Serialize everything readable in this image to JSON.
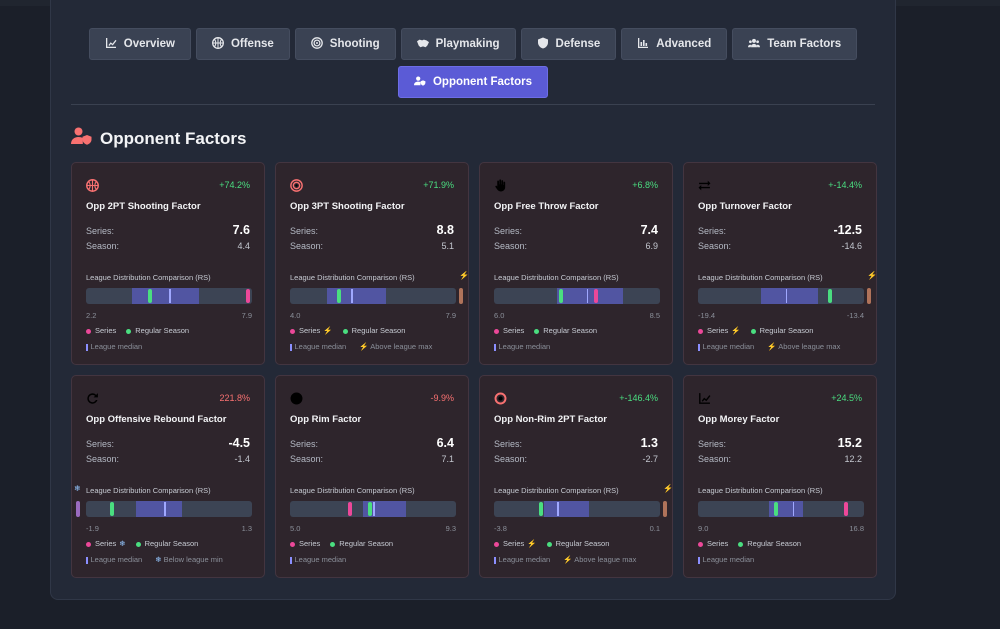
{
  "tabs": [
    {
      "label": "Overview",
      "icon": "chart-line-icon"
    },
    {
      "label": "Offense",
      "icon": "basketball-icon"
    },
    {
      "label": "Shooting",
      "icon": "target-icon"
    },
    {
      "label": "Playmaking",
      "icon": "handshake-icon"
    },
    {
      "label": "Defense",
      "icon": "shield-icon"
    },
    {
      "label": "Advanced",
      "icon": "chart-bar-icon"
    },
    {
      "label": "Team Factors",
      "icon": "users-icon"
    }
  ],
  "active_tab": {
    "label": "Opponent Factors",
    "icon": "user-shield-icon"
  },
  "section": {
    "title": "Opponent Factors",
    "icon": "user-shield-icon"
  },
  "labels": {
    "series": "Series:",
    "season": "Season:",
    "dist_title": "League Distribution Comparison (RS)",
    "legend_series": "Series",
    "legend_season": "Regular Season",
    "legend_median": "League median",
    "legend_above_max": "Above league max",
    "legend_below_min": "Below league min"
  },
  "colors": {
    "series_marker": "#ec4899",
    "season_marker": "#4ade80",
    "positive": "#4ade80",
    "negative": "#f87171",
    "accent": "#5b5bd6",
    "card_icon": "#f87171"
  },
  "cards": [
    {
      "name": "Opp 2PT Shooting Factor",
      "icon": "basketball-icon",
      "pct": "+74.2%",
      "pct_sign": "pos",
      "series": "7.6",
      "season": "4.4",
      "range_min": "2.2",
      "range_max": "7.9",
      "series_pos": 0.99,
      "season_pos": 0.38,
      "median_pos": 0.5,
      "iqr": [
        0.28,
        0.68
      ],
      "outlier": "none"
    },
    {
      "name": "Opp 3PT Shooting Factor",
      "icon": "target-icon",
      "pct": "+71.9%",
      "pct_sign": "pos",
      "series": "8.8",
      "season": "5.1",
      "range_min": "4.0",
      "range_max": "7.9",
      "series_pos": 1.05,
      "season_pos": 0.29,
      "median_pos": 0.37,
      "iqr": [
        0.22,
        0.58
      ],
      "outlier": "max"
    },
    {
      "name": "Opp Free Throw Factor",
      "icon": "hand-icon",
      "pct": "+6.8%",
      "pct_sign": "pos",
      "series": "7.4",
      "season": "6.9",
      "range_min": "6.0",
      "range_max": "8.5",
      "series_pos": 0.62,
      "season_pos": 0.4,
      "median_pos": 0.56,
      "iqr": [
        0.38,
        0.78
      ],
      "outlier": "none"
    },
    {
      "name": "Opp Turnover Factor",
      "icon": "exchange-icon",
      "pct": "+-14.4%",
      "pct_sign": "pos",
      "series": "-12.5",
      "season": "-14.6",
      "range_min": "-19.4",
      "range_max": "-13.4",
      "series_pos": 1.05,
      "season_pos": 0.8,
      "median_pos": 0.53,
      "iqr": [
        0.38,
        0.72
      ],
      "outlier": "max"
    },
    {
      "name": "Opp Offensive Rebound Factor",
      "icon": "redo-icon",
      "pct": "221.8%",
      "pct_sign": "neg",
      "series": "-4.5",
      "season": "-1.4",
      "range_min": "-1.9",
      "range_max": "1.3",
      "series_pos": -0.05,
      "season_pos": 0.15,
      "median_pos": 0.47,
      "iqr": [
        0.3,
        0.58
      ],
      "outlier": "min"
    },
    {
      "name": "Opp Rim Factor",
      "icon": "circle-icon",
      "pct": "-9.9%",
      "pct_sign": "neg",
      "series": "6.4",
      "season": "7.1",
      "range_min": "5.0",
      "range_max": "9.3",
      "series_pos": 0.36,
      "season_pos": 0.48,
      "median_pos": 0.5,
      "iqr": [
        0.44,
        0.7
      ],
      "outlier": "none"
    },
    {
      "name": "Opp Non-Rim 2PT Factor",
      "icon": "dot-circle-icon",
      "pct": "+-146.4%",
      "pct_sign": "pos",
      "series": "1.3",
      "season": "-2.7",
      "range_min": "-3.8",
      "range_max": "0.1",
      "series_pos": 1.05,
      "season_pos": 0.28,
      "median_pos": 0.38,
      "iqr": [
        0.3,
        0.57
      ],
      "outlier": "max"
    },
    {
      "name": "Opp Morey Factor",
      "icon": "chart-line-icon",
      "pct": "+24.5%",
      "pct_sign": "pos",
      "series": "15.2",
      "season": "12.2",
      "range_min": "9.0",
      "range_max": "16.8",
      "series_pos": 0.9,
      "season_pos": 0.47,
      "median_pos": 0.57,
      "iqr": [
        0.43,
        0.63
      ],
      "outlier": "none"
    }
  ]
}
